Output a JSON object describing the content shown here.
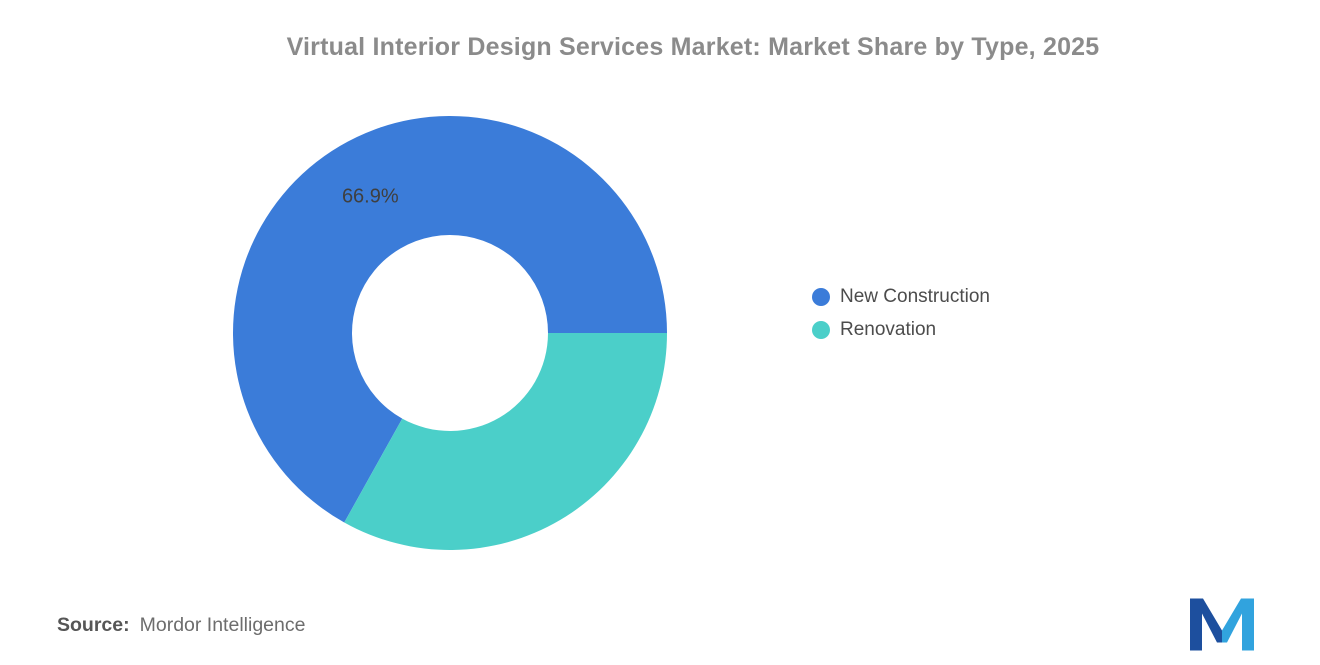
{
  "chart_data": {
    "type": "pie",
    "title": "Virtual Interior Design Services Market: Market Share by Type, 2025",
    "donut": true,
    "inner_radius_ratio": 0.45,
    "start_angle_deg": 119.16,
    "direction": "clockwise",
    "legend_position": "right",
    "slices": [
      {
        "label": "New Construction",
        "value": 66.9,
        "color": "#3b7cd9",
        "data_label": "66.9%"
      },
      {
        "label": "Renovation",
        "value": 33.1,
        "color": "#4bcfc9",
        "data_label": ""
      }
    ]
  },
  "source": {
    "label": "Source:",
    "value": "Mordor Intelligence"
  },
  "logo": {
    "name": "mordor-intelligence-logo",
    "colors": {
      "dark": "#1d4f9e",
      "light": "#31a3de"
    }
  }
}
